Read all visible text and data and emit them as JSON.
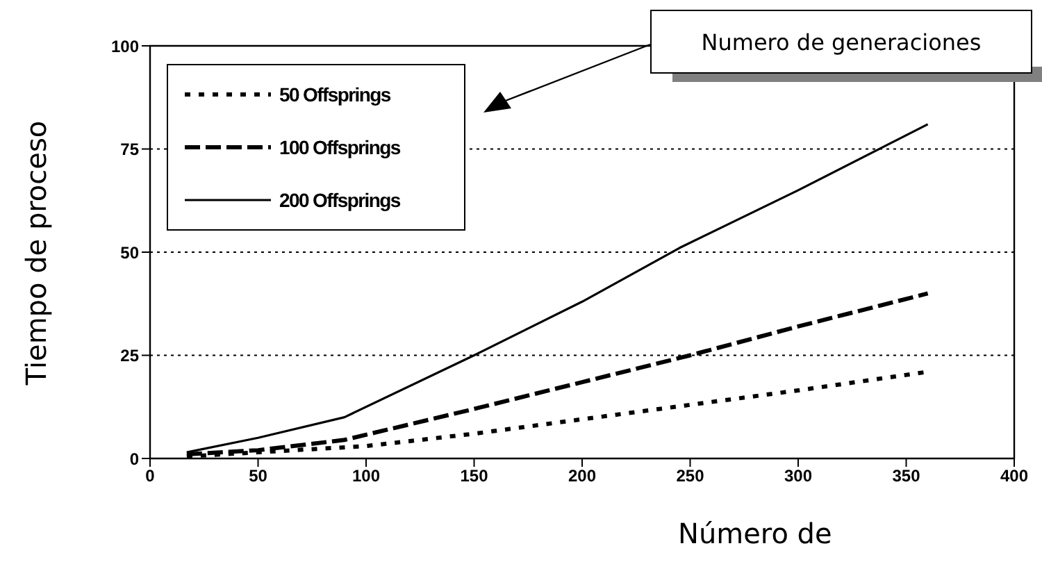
{
  "chart_data": {
    "type": "line",
    "xlabel": "Número de",
    "ylabel": "Tiempo de proceso",
    "annotations": [
      "Numero de generaciones"
    ],
    "xlim": [
      0,
      400
    ],
    "xticks": [
      0,
      50,
      100,
      150,
      200,
      250,
      300,
      350,
      400
    ],
    "ylim": [
      0,
      100
    ],
    "yticks": [
      0,
      25,
      50,
      75,
      100
    ],
    "grid": "y",
    "legend": "top left",
    "marker": "none",
    "series": [
      {
        "name": "50 Offsprings",
        "color": "#000000",
        "line_style": "dotted",
        "x": [
          17,
          50,
          100,
          150,
          200,
          250,
          300,
          360
        ],
        "values": [
          0.5,
          1.5,
          3,
          6,
          9.5,
          13,
          16.5,
          21
        ]
      },
      {
        "name": "100 Offsprings",
        "color": "#000000",
        "line_style": "dashed",
        "x": [
          17,
          50,
          90,
          150,
          200,
          250,
          300,
          360
        ],
        "values": [
          1,
          2,
          4.5,
          12,
          18.5,
          25,
          32,
          40
        ]
      },
      {
        "name": "200 Offsprings",
        "color": "#000000",
        "line_style": "solid",
        "x": [
          17,
          50,
          90,
          150,
          200,
          245,
          300,
          360
        ],
        "values": [
          1.5,
          5,
          10,
          25,
          38,
          51,
          65,
          81
        ]
      }
    ]
  }
}
